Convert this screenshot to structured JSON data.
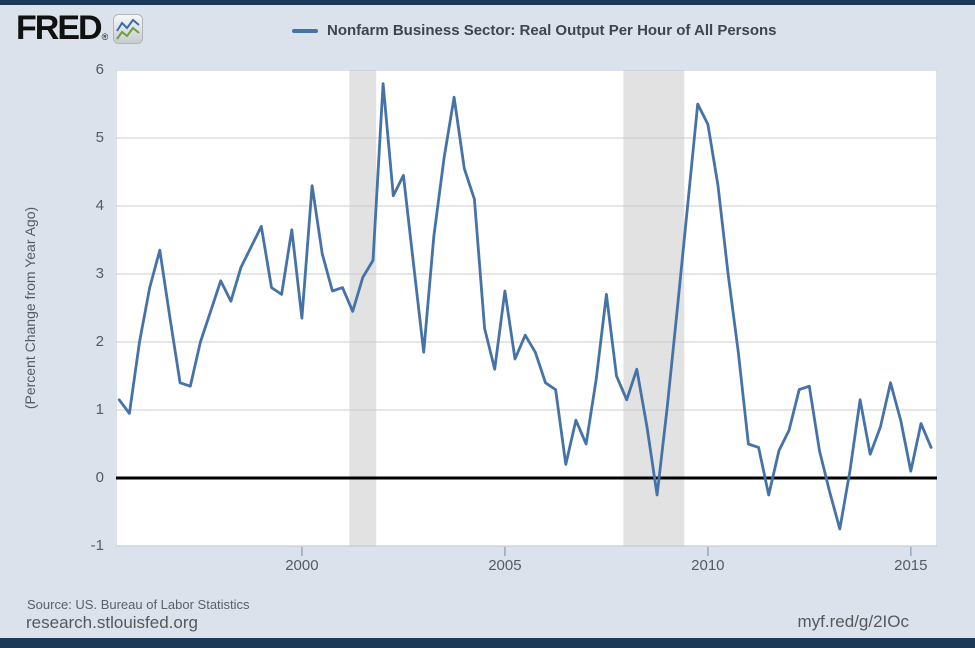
{
  "header": {
    "logo_text": "FRED",
    "registered_mark": "®",
    "legend_label": "Nonfarm Business Sector: Real Output Per Hour of All Persons"
  },
  "footer": {
    "source": "Source: US. Bureau of Labor Statistics",
    "site": "research.stlouisfed.org",
    "short_url": "myf.red/g/2IOc"
  },
  "colors": {
    "line": "#4572a7",
    "navy_bar": "#1c3a58",
    "page_bg": "#dbe2ec",
    "plot_bg": "#ffffff",
    "gridline": "#cccccc",
    "recession_band": "#e2e2e2",
    "zero_line": "#000000",
    "plot_border": "#b9c4d2",
    "tick": "#93a9bd"
  },
  "chart_data": {
    "type": "line",
    "title": "Nonfarm Business Sector: Real Output Per Hour of All Persons",
    "ylabel": "(Percent Change from Year Ago)",
    "xlabel": "",
    "units": "percent change from year ago",
    "frequency": "quarterly",
    "grid": "horizontal",
    "legend_position": "top-center",
    "xlim": [
      1995.42,
      2015.645
    ],
    "ylim": [
      -1,
      6
    ],
    "x_ticks": [
      2000,
      2005,
      2010,
      2015
    ],
    "x_tick_labels": [
      "2000",
      "2005",
      "2010",
      "2015"
    ],
    "y_ticks": [
      6,
      5,
      4,
      3,
      2,
      1,
      0,
      -1
    ],
    "y_tick_labels": [
      "6",
      "5",
      "4",
      "3",
      "2",
      "1",
      "0",
      "-1"
    ],
    "recession_bands": [
      [
        2001.17,
        2001.83
      ],
      [
        2007.92,
        2009.42
      ]
    ],
    "series_name": "Nonfarm Business Sector: Real Output Per Hour of All Persons",
    "x": [
      1995.5,
      1995.75,
      1996,
      1996.25,
      1996.5,
      1996.75,
      1997,
      1997.25,
      1997.5,
      1997.75,
      1998,
      1998.25,
      1998.5,
      1998.75,
      1999,
      1999.25,
      1999.5,
      1999.75,
      2000,
      2000.25,
      2000.5,
      2000.75,
      2001,
      2001.25,
      2001.5,
      2001.75,
      2002,
      2002.25,
      2002.5,
      2002.75,
      2003,
      2003.25,
      2003.5,
      2003.75,
      2004,
      2004.25,
      2004.5,
      2004.75,
      2005,
      2005.25,
      2005.5,
      2005.75,
      2006,
      2006.25,
      2006.5,
      2006.75,
      2007,
      2007.25,
      2007.5,
      2007.75,
      2008,
      2008.25,
      2008.5,
      2008.75,
      2009,
      2009.25,
      2009.5,
      2009.75,
      2010,
      2010.25,
      2010.5,
      2010.75,
      2011,
      2011.25,
      2011.5,
      2011.75,
      2012,
      2012.25,
      2012.5,
      2012.75,
      2013,
      2013.25,
      2013.5,
      2013.75,
      2014,
      2014.25,
      2014.5,
      2014.75,
      2015,
      2015.25,
      2015.5
    ],
    "values": [
      1.15,
      0.95,
      2.0,
      2.8,
      3.35,
      2.35,
      1.4,
      1.35,
      2.0,
      2.45,
      2.9,
      2.6,
      3.1,
      3.4,
      3.7,
      2.8,
      2.7,
      3.65,
      2.35,
      4.3,
      3.3,
      2.75,
      2.8,
      2.45,
      2.95,
      3.2,
      5.8,
      4.15,
      4.45,
      3.15,
      1.85,
      3.55,
      4.7,
      5.6,
      4.55,
      4.1,
      2.2,
      1.6,
      2.75,
      1.75,
      2.1,
      1.85,
      1.4,
      1.3,
      0.2,
      0.85,
      0.5,
      1.45,
      2.7,
      1.5,
      1.15,
      1.6,
      0.75,
      -0.25,
      1.05,
      2.5,
      4.0,
      5.5,
      5.2,
      4.3,
      3.0,
      1.85,
      0.5,
      0.45,
      -0.25,
      0.4,
      0.7,
      1.3,
      1.35,
      0.4,
      -0.2,
      -0.75,
      0.1,
      1.15,
      0.35,
      0.75,
      1.4,
      0.85,
      0.1,
      0.8,
      0.45
    ]
  }
}
